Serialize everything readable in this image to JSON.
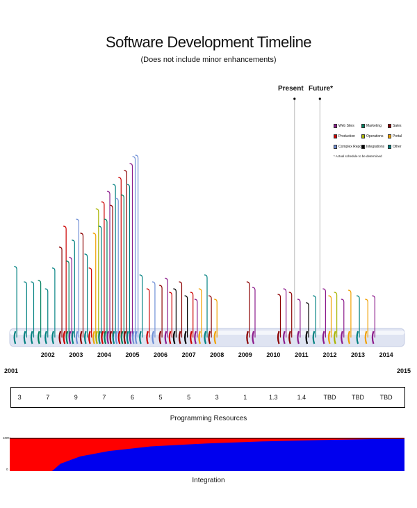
{
  "chart_data": {
    "type": "timeline",
    "title": "Software Development Timeline",
    "subtitle": "(Does not include minor enhancements)",
    "markers": [
      {
        "label": "Present",
        "year": 2011.1
      },
      {
        "label": "Future*",
        "year": 2012.0
      }
    ],
    "timeline_start_label": "2001",
    "timeline_end_label": "2015",
    "year_labels": [
      "2002",
      "2003",
      "2004",
      "2005",
      "2006",
      "2007",
      "2008",
      "2009",
      "2010",
      "2011",
      "2012",
      "2013",
      "2014"
    ],
    "category_colors": {
      "web_sites": "#8b1a8b",
      "production": "#cc0000",
      "complex_reports": "#6f8fd6",
      "marketing": "#008060",
      "operations": "#a8b400",
      "integrations": "#000000",
      "sales": "#8b0000",
      "portal": "#f0a000",
      "other": "#008080"
    },
    "projects": [
      {
        "year": 2001.25,
        "category": "other",
        "height": 92
      },
      {
        "year": 2001.6,
        "category": "other",
        "height": 70
      },
      {
        "year": 2001.85,
        "category": "other",
        "height": 70
      },
      {
        "year": 2002.1,
        "category": "marketing",
        "height": 72
      },
      {
        "year": 2002.35,
        "category": "other",
        "height": 60
      },
      {
        "year": 2002.6,
        "category": "other",
        "height": 90
      },
      {
        "year": 2002.85,
        "category": "sales",
        "height": 120
      },
      {
        "year": 2003.0,
        "category": "production",
        "height": 150
      },
      {
        "year": 2003.1,
        "category": "marketing",
        "height": 100
      },
      {
        "year": 2003.2,
        "category": "web_sites",
        "height": 105
      },
      {
        "year": 2003.3,
        "category": "other",
        "height": 130
      },
      {
        "year": 2003.45,
        "category": "complex_reports",
        "height": 160
      },
      {
        "year": 2003.6,
        "category": "sales",
        "height": 140
      },
      {
        "year": 2003.75,
        "category": "other",
        "height": 110
      },
      {
        "year": 2003.9,
        "category": "production",
        "height": 90
      },
      {
        "year": 2004.05,
        "category": "portal",
        "height": 140
      },
      {
        "year": 2004.15,
        "category": "operations",
        "height": 175
      },
      {
        "year": 2004.25,
        "category": "other",
        "height": 150
      },
      {
        "year": 2004.35,
        "category": "production",
        "height": 185
      },
      {
        "year": 2004.45,
        "category": "marketing",
        "height": 160
      },
      {
        "year": 2004.55,
        "category": "web_sites",
        "height": 200
      },
      {
        "year": 2004.65,
        "category": "sales",
        "height": 180
      },
      {
        "year": 2004.75,
        "category": "other",
        "height": 210
      },
      {
        "year": 2004.85,
        "category": "complex_reports",
        "height": 190
      },
      {
        "year": 2004.95,
        "category": "production",
        "height": 220
      },
      {
        "year": 2005.05,
        "category": "marketing",
        "height": 195
      },
      {
        "year": 2005.15,
        "category": "sales",
        "height": 230
      },
      {
        "year": 2005.25,
        "category": "other",
        "height": 210
      },
      {
        "year": 2005.35,
        "category": "web_sites",
        "height": 240
      },
      {
        "year": 2005.45,
        "category": "complex_reports",
        "height": 250
      },
      {
        "year": 2005.55,
        "category": "complex_reports",
        "height": 252
      },
      {
        "year": 2005.7,
        "category": "other",
        "height": 80
      },
      {
        "year": 2005.95,
        "category": "production",
        "height": 60
      },
      {
        "year": 2006.15,
        "category": "complex_reports",
        "height": 70
      },
      {
        "year": 2006.4,
        "category": "sales",
        "height": 65
      },
      {
        "year": 2006.6,
        "category": "web_sites",
        "height": 75
      },
      {
        "year": 2006.75,
        "category": "production",
        "height": 55
      },
      {
        "year": 2006.9,
        "category": "integrations",
        "height": 60
      },
      {
        "year": 2007.1,
        "category": "sales",
        "height": 70
      },
      {
        "year": 2007.3,
        "category": "integrations",
        "height": 50
      },
      {
        "year": 2007.5,
        "category": "production",
        "height": 55
      },
      {
        "year": 2007.65,
        "category": "web_sites",
        "height": 45
      },
      {
        "year": 2007.8,
        "category": "portal",
        "height": 60
      },
      {
        "year": 2008.0,
        "category": "other",
        "height": 80
      },
      {
        "year": 2008.15,
        "category": "sales",
        "height": 50
      },
      {
        "year": 2008.35,
        "category": "portal",
        "height": 45
      },
      {
        "year": 2009.5,
        "category": "sales",
        "height": 70
      },
      {
        "year": 2009.7,
        "category": "web_sites",
        "height": 62
      },
      {
        "year": 2010.6,
        "category": "sales",
        "height": 52
      },
      {
        "year": 2010.8,
        "category": "web_sites",
        "height": 60
      },
      {
        "year": 2011.0,
        "category": "sales",
        "height": 55
      },
      {
        "year": 2011.3,
        "category": "web_sites",
        "height": 45
      },
      {
        "year": 2011.6,
        "category": "integrations",
        "height": 40
      },
      {
        "year": 2011.85,
        "category": "other",
        "height": 50
      },
      {
        "year": 2012.2,
        "category": "web_sites",
        "height": 60
      },
      {
        "year": 2012.4,
        "category": "portal",
        "height": 50
      },
      {
        "year": 2012.6,
        "category": "operations",
        "height": 55
      },
      {
        "year": 2012.85,
        "category": "web_sites",
        "height": 45
      },
      {
        "year": 2013.1,
        "category": "portal",
        "height": 58
      },
      {
        "year": 2013.4,
        "category": "other",
        "height": 50
      },
      {
        "year": 2013.7,
        "category": "portal",
        "height": 45
      },
      {
        "year": 2013.95,
        "category": "web_sites",
        "height": 50
      }
    ],
    "legend": [
      {
        "label": "Web Sites",
        "key": "web_sites"
      },
      {
        "label": "Marketing",
        "key": "marketing"
      },
      {
        "label": "Sales",
        "key": "sales"
      },
      {
        "label": "Production",
        "key": "production"
      },
      {
        "label": "Operations",
        "key": "operations"
      },
      {
        "label": "Portal",
        "key": "portal"
      },
      {
        "label": "Complex Reports",
        "key": "complex_reports"
      },
      {
        "label": "Integrations",
        "key": "integrations"
      },
      {
        "label": "Other",
        "key": "other"
      }
    ],
    "legend_note": "* Actual schedule to be determined",
    "programming_resources": {
      "title": "Programming Resources",
      "values": [
        "3",
        "7",
        "9",
        "7",
        "6",
        "5",
        "5",
        "3",
        "1",
        "1.3",
        "1.4",
        "TBD",
        "TBD",
        "TBD"
      ]
    },
    "integration": {
      "title": "Integration",
      "y_top_label": "100%",
      "y_bottom_label": "0",
      "x_start_year": 2001,
      "x_end_year": 2015,
      "series": [
        {
          "name": "blue",
          "color": "#0000ee",
          "years": [
            2002.5,
            2002.8,
            2003.5,
            2004.5,
            2006,
            2008,
            2010,
            2012,
            2014,
            2015
          ],
          "share_pct": [
            0,
            22,
            44,
            60,
            74,
            83,
            89,
            93,
            96,
            98
          ]
        },
        {
          "name": "red",
          "color": "#ff0000"
        }
      ]
    }
  }
}
